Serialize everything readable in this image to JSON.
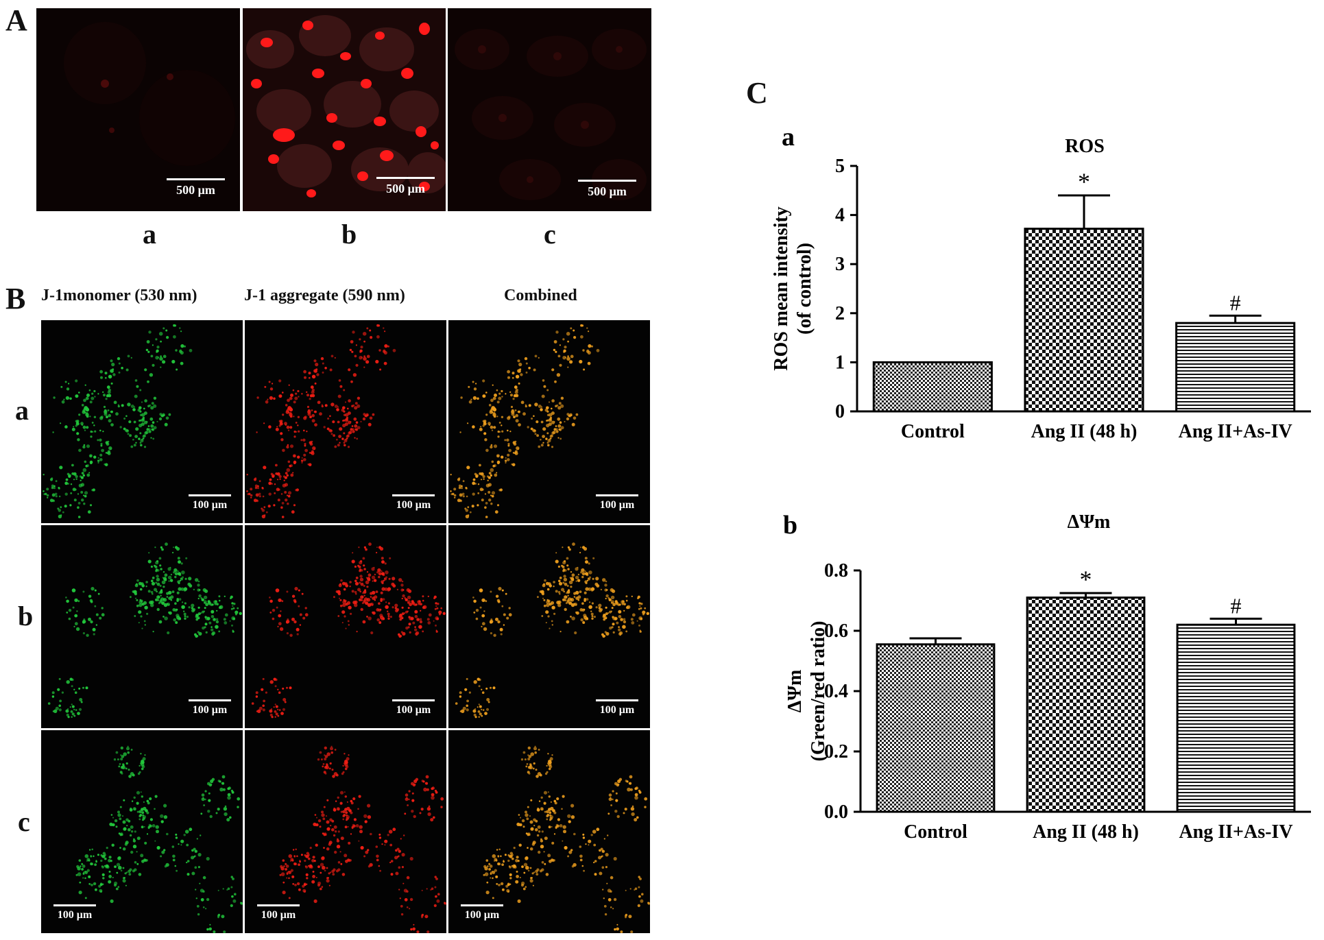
{
  "panel_A": {
    "letter": "A",
    "scale_label": "500 μm",
    "images": [
      {
        "label": "a",
        "tone": "dim"
      },
      {
        "label": "b",
        "tone": "bright"
      },
      {
        "label": "c",
        "tone": "dim"
      }
    ]
  },
  "panel_B": {
    "letter": "B",
    "columns": [
      "J-1monomer (530 nm)",
      "J-1 aggregate (590 nm)",
      "Combined"
    ],
    "rows": [
      "a",
      "b",
      "c"
    ],
    "scale_label": "100 μm",
    "channel_colors": [
      "#22c83c",
      "#f01e14",
      "#f0a01e"
    ]
  },
  "panel_C": {
    "letter": "C"
  },
  "colors": {
    "bar_fill": "#111111",
    "bar_bg": "#ffffff"
  },
  "chart_data": [
    {
      "sub_label": "a",
      "type": "bar",
      "title": "ROS",
      "ylabel_lines": [
        "ROS mean intensity",
        "(of control)"
      ],
      "categories": [
        "Control",
        "Ang II (48 h)",
        "Ang II+As-IV"
      ],
      "values": [
        1.0,
        3.72,
        1.8
      ],
      "errors": [
        0,
        0.68,
        0.15
      ],
      "annotations": [
        "",
        "*",
        "#"
      ],
      "patterns": [
        "fine-check",
        "coarse-check",
        "horizontal-lines"
      ],
      "ylim": [
        0,
        5
      ],
      "yticks": [
        "0",
        "1",
        "2",
        "3",
        "4",
        "5"
      ],
      "ytick_values": [
        0,
        1,
        2,
        3,
        4,
        5
      ]
    },
    {
      "sub_label": "b",
      "type": "bar",
      "title": "ΔΨm",
      "ylabel_lines": [
        "ΔΨm",
        "(Green/red ratio)"
      ],
      "categories": [
        "Control",
        "Ang II (48 h)",
        "Ang II+As-IV"
      ],
      "values": [
        0.555,
        0.71,
        0.62
      ],
      "errors": [
        0.02,
        0.015,
        0.02
      ],
      "annotations": [
        "",
        "*",
        "#"
      ],
      "patterns": [
        "fine-check",
        "coarse-check",
        "horizontal-lines"
      ],
      "ylim": [
        0,
        0.8
      ],
      "yticks": [
        "0.0",
        "0.2",
        "0.4",
        "0.6",
        "0.8"
      ],
      "ytick_values": [
        0,
        0.2,
        0.4,
        0.6,
        0.8
      ]
    }
  ]
}
